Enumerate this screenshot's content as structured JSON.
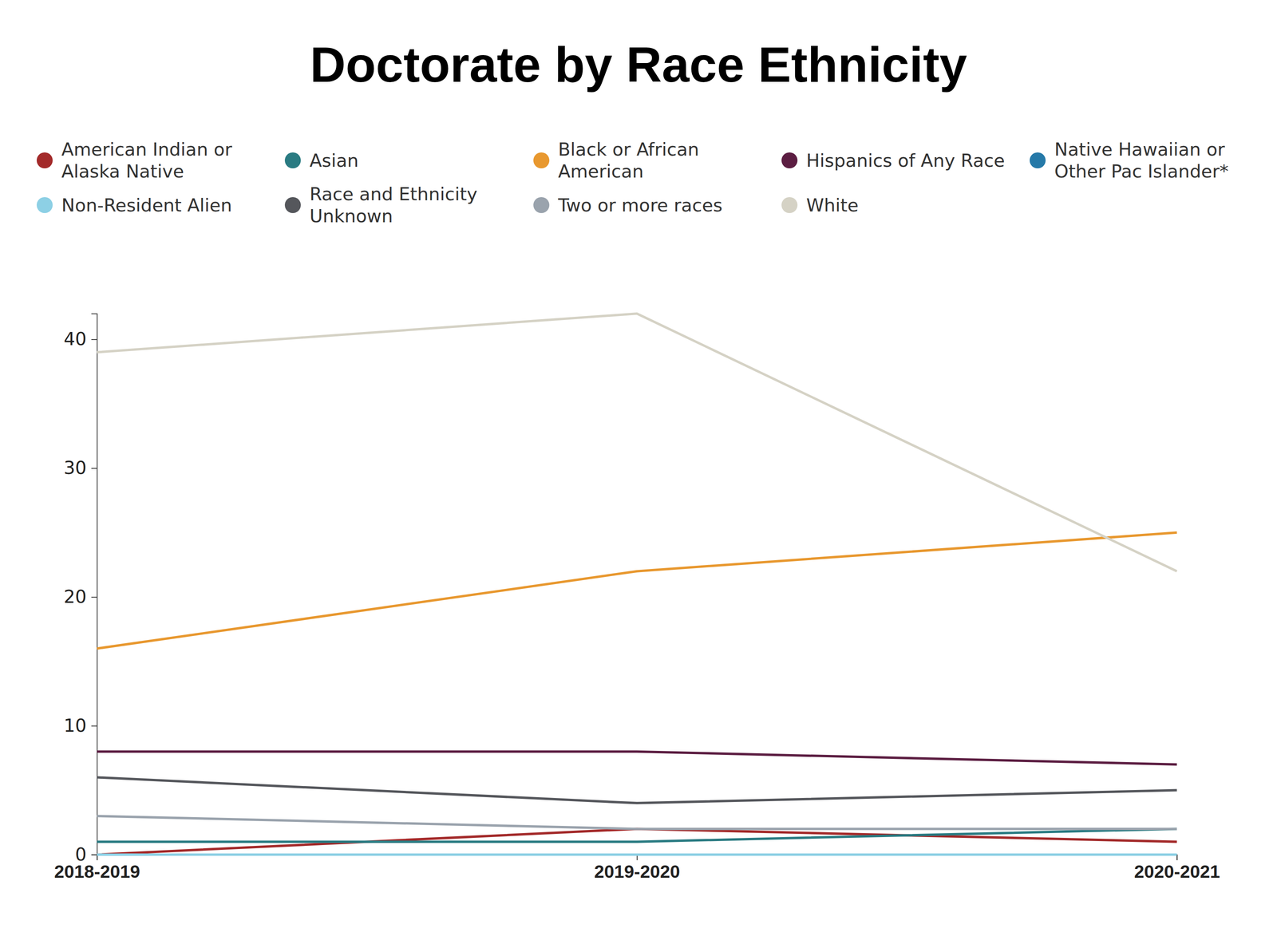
{
  "chart_data": {
    "type": "line",
    "title": "Doctorate by Race Ethnicity",
    "categories": [
      "2018-2019",
      "2019-2020",
      "2020-2021"
    ],
    "series": [
      {
        "name": "American Indian or Alaska Native",
        "color": "#a32a2a",
        "values": [
          0,
          2,
          1
        ]
      },
      {
        "name": "Asian",
        "color": "#2a7b82",
        "values": [
          1,
          1,
          2
        ]
      },
      {
        "name": "Black or African American",
        "color": "#e8982f",
        "values": [
          16,
          22,
          25
        ]
      },
      {
        "name": "Hispanics of Any Race",
        "color": "#5c1e42",
        "values": [
          8,
          8,
          7
        ]
      },
      {
        "name": "Native Hawaiian or Other Pac Islander*",
        "color": "#2579a8",
        "values": [
          0,
          0,
          0
        ]
      },
      {
        "name": "Non-Resident Alien",
        "color": "#8dd0e5",
        "values": [
          0,
          0,
          0
        ]
      },
      {
        "name": "Race and Ethnicity Unknown",
        "color": "#55575c",
        "values": [
          6,
          4,
          5
        ]
      },
      {
        "name": "Two or more races",
        "color": "#9aa3ad",
        "values": [
          3,
          2,
          2
        ]
      },
      {
        "name": "White",
        "color": "#d5d2c5",
        "values": [
          39,
          42,
          22
        ]
      }
    ],
    "ylim": [
      0,
      42
    ],
    "yticks": [
      0,
      10,
      20,
      30,
      40
    ],
    "grid": false,
    "legend": "top"
  }
}
